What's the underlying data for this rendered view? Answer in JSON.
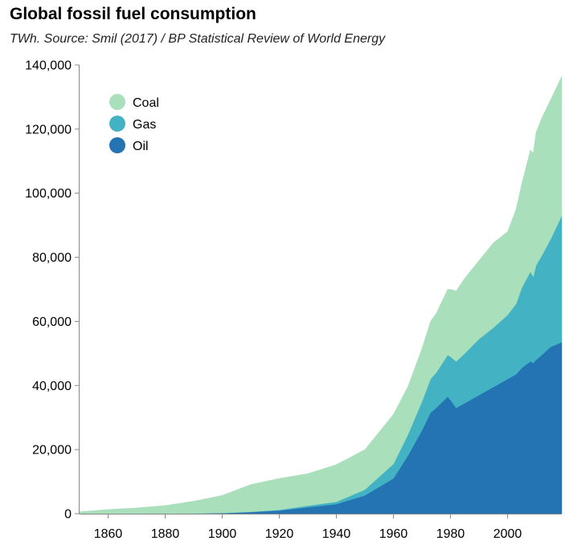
{
  "chart_data": {
    "type": "area",
    "stacked": true,
    "title": "Global fossil fuel consumption",
    "subtitle": "TWh. Source: Smil (2017) / BP Statistical Review of World Energy",
    "xlabel": "",
    "ylabel": "",
    "xlim": [
      1850,
      2019
    ],
    "ylim": [
      0,
      140000
    ],
    "x_ticks": [
      1860,
      1880,
      1900,
      1920,
      1940,
      1960,
      1980,
      2000
    ],
    "y_ticks": [
      0,
      20000,
      40000,
      60000,
      80000,
      100000,
      120000,
      140000
    ],
    "y_tick_labels": [
      "0",
      "20,000",
      "40,000",
      "60,000",
      "80,000",
      "100,000",
      "120,000",
      "140,000"
    ],
    "legend_position": "top-left",
    "grid": false,
    "x": [
      1850,
      1860,
      1870,
      1880,
      1890,
      1900,
      1910,
      1920,
      1930,
      1940,
      1950,
      1960,
      1965,
      1970,
      1973,
      1975,
      1979,
      1980,
      1982,
      1985,
      1990,
      1995,
      2000,
      2003,
      2005,
      2008,
      2009,
      2010,
      2012,
      2015,
      2019
    ],
    "series": [
      {
        "name": "Oil",
        "color": "#2473b2",
        "values": [
          0,
          0,
          0,
          50,
          100,
          200,
          500,
          1000,
          2000,
          3000,
          5700,
          11000,
          18000,
          26000,
          31500,
          33000,
          36500,
          35500,
          33000,
          34500,
          37000,
          39500,
          42000,
          43500,
          45500,
          47500,
          47000,
          48000,
          49500,
          52000,
          53500
        ]
      },
      {
        "name": "Gas",
        "color": "#43b3c4",
        "values": [
          0,
          0,
          0,
          0,
          0,
          0,
          100,
          200,
          500,
          700,
          1800,
          4500,
          6500,
          9000,
          10500,
          11000,
          13000,
          13500,
          14500,
          15500,
          17500,
          18500,
          20000,
          22000,
          25000,
          28000,
          27000,
          29500,
          31000,
          33500,
          39500
        ]
      },
      {
        "name": "Coal",
        "color": "#a9dfba",
        "values": [
          600,
          1300,
          1800,
          2500,
          3800,
          5500,
          8500,
          9800,
          10000,
          11600,
          12500,
          15500,
          15000,
          16500,
          18000,
          18500,
          20500,
          21000,
          22000,
          23500,
          24500,
          26500,
          26000,
          29500,
          32500,
          38000,
          38500,
          41500,
          43000,
          43500,
          43500
        ]
      }
    ]
  }
}
